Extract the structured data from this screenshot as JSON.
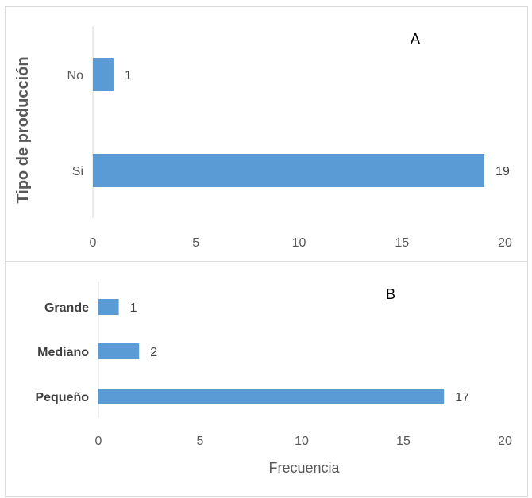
{
  "chart_data": [
    {
      "type": "bar",
      "orientation": "horizontal",
      "panel_label": "A",
      "ylabel": "Tipo de producción",
      "xlabel": "",
      "categories": [
        "No",
        "Si"
      ],
      "values": [
        1,
        19
      ],
      "data_labels": [
        "1",
        "19"
      ],
      "xlim": [
        0,
        20
      ],
      "xticks": [
        "0",
        "5",
        "10",
        "15",
        "20"
      ],
      "bar_color": "#5b9bd5",
      "grid": false,
      "legend": "none"
    },
    {
      "type": "bar",
      "orientation": "horizontal",
      "panel_label": "B",
      "xlabel": "Frecuencia",
      "ylabel": "",
      "categories": [
        "Grande",
        "Mediano",
        "Pequeño"
      ],
      "values": [
        1,
        2,
        17
      ],
      "data_labels": [
        "1",
        "2",
        "17"
      ],
      "xlim": [
        0,
        20
      ],
      "xticks": [
        "0",
        "5",
        "10",
        "15",
        "20"
      ],
      "bar_color": "#5b9bd5",
      "grid": false,
      "legend": "none"
    }
  ]
}
